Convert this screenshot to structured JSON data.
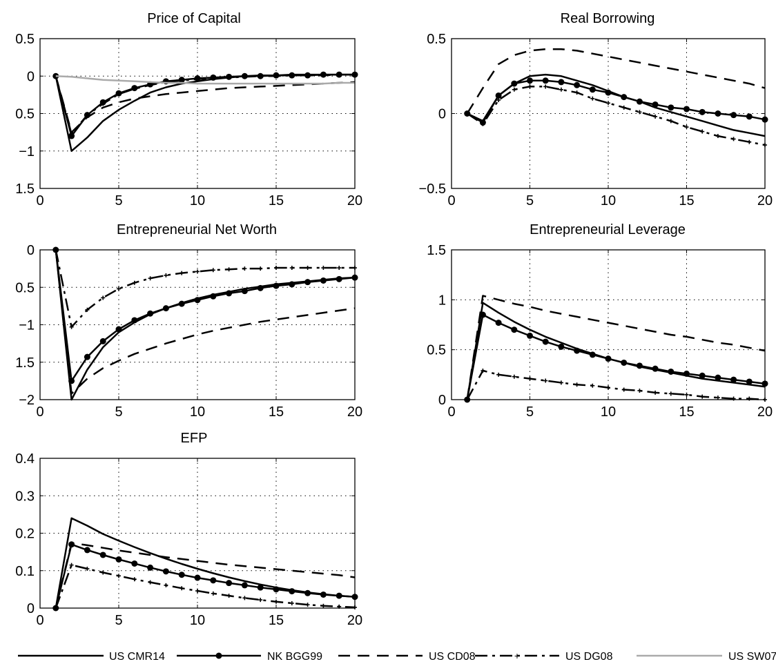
{
  "figure": {
    "panels": [
      {
        "title": "Price of Capital",
        "xlim": [
          0,
          20
        ],
        "ylim": [
          -1.5,
          0.5
        ],
        "xticks": [
          0,
          5,
          10,
          15,
          20
        ],
        "xtick_labels": [
          "0",
          "5",
          "10",
          "15",
          "20"
        ],
        "yticks": [
          0.5,
          0,
          -0.5,
          -1,
          -1.5
        ],
        "ytick_labels": [
          "0.5",
          "0",
          "0.5",
          "−1",
          "1.5"
        ]
      },
      {
        "title": "Real Borrowing",
        "xlim": [
          0,
          20
        ],
        "ylim": [
          -0.5,
          0.5
        ],
        "xticks": [
          0,
          5,
          10,
          15,
          20
        ],
        "xtick_labels": [
          "0",
          "5",
          "10",
          "15",
          "20"
        ],
        "yticks": [
          0.5,
          0,
          -0.5
        ],
        "ytick_labels": [
          "0.5",
          "0",
          "−0.5"
        ]
      },
      {
        "title": "Entrepreneurial Net Worth",
        "xlim": [
          0,
          20
        ],
        "ylim": [
          -2,
          0
        ],
        "xticks": [
          0,
          5,
          10,
          15,
          20
        ],
        "xtick_labels": [
          "0",
          "5",
          "10",
          "15",
          "20"
        ],
        "yticks": [
          0,
          -0.5,
          -1,
          -1.5,
          -2
        ],
        "ytick_labels": [
          "0",
          "0.5",
          "−1",
          "1.5",
          "−2"
        ]
      },
      {
        "title": "Entrepreneurial Leverage",
        "xlim": [
          0,
          20
        ],
        "ylim": [
          0,
          1.5
        ],
        "xticks": [
          0,
          5,
          10,
          15,
          20
        ],
        "xtick_labels": [
          "0",
          "5",
          "10",
          "15",
          "20"
        ],
        "yticks": [
          1.5,
          1,
          0.5,
          0
        ],
        "ytick_labels": [
          "1.5",
          "1",
          "0.5",
          "0"
        ]
      },
      {
        "title": "EFP",
        "xlim": [
          0,
          20
        ],
        "ylim": [
          0,
          0.4
        ],
        "xticks": [
          0,
          5,
          10,
          15,
          20
        ],
        "xtick_labels": [
          "0",
          "5",
          "10",
          "15",
          "20"
        ],
        "yticks": [
          0.4,
          0.3,
          0.2,
          0.1,
          0
        ],
        "ytick_labels": [
          "0.4",
          "0.3",
          "0.2",
          "0.1",
          "0"
        ]
      }
    ],
    "legend": [
      {
        "label": "US  CMR14",
        "style": "solid",
        "color": "#000000"
      },
      {
        "label": "NK  BGG99",
        "style": "solid-dots",
        "color": "#000000"
      },
      {
        "label": "US  CD08",
        "style": "dashed",
        "color": "#000000"
      },
      {
        "label": "US  DG08",
        "style": "dashdot-plus",
        "color": "#000000"
      },
      {
        "label": "US  SW07",
        "style": "solid",
        "color": "#aaaaaa"
      }
    ]
  },
  "chart_data": [
    {
      "type": "line",
      "title": "Price of Capital",
      "xlim": [
        0,
        20
      ],
      "ylim": [
        -1.5,
        0.5
      ],
      "grid": true,
      "x": [
        1,
        2,
        3,
        4,
        5,
        6,
        7,
        8,
        9,
        10,
        11,
        12,
        13,
        14,
        15,
        16,
        17,
        18,
        19,
        20
      ],
      "series": [
        {
          "name": "US  CMR14",
          "values": [
            0,
            -1.0,
            -0.82,
            -0.6,
            -0.45,
            -0.33,
            -0.22,
            -0.15,
            -0.1,
            -0.07,
            -0.04,
            -0.02,
            0,
            0.01,
            0.01,
            0.02,
            0.02,
            0.02,
            0.02,
            0.02
          ]
        },
        {
          "name": "NK  BGG99",
          "values": [
            0,
            -0.8,
            -0.52,
            -0.35,
            -0.23,
            -0.16,
            -0.11,
            -0.07,
            -0.05,
            -0.03,
            -0.02,
            -0.01,
            0,
            0,
            0.01,
            0.01,
            0.01,
            0.02,
            0.02,
            0.02
          ]
        },
        {
          "name": "US  CD08",
          "values": [
            0,
            -0.75,
            -0.55,
            -0.42,
            -0.35,
            -0.3,
            -0.27,
            -0.24,
            -0.22,
            -0.2,
            -0.18,
            -0.16,
            -0.15,
            -0.14,
            -0.13,
            -0.12,
            -0.11,
            -0.1,
            -0.09,
            -0.08
          ]
        },
        {
          "name": "US  DG08",
          "values": [
            0,
            -0.77,
            -0.52,
            -0.37,
            -0.24,
            -0.17,
            -0.12,
            -0.08,
            -0.06,
            -0.04,
            -0.03,
            -0.02,
            -0.01,
            0,
            0,
            0.01,
            0.01,
            0.01,
            0.02,
            0.02
          ]
        },
        {
          "name": "US  SW07",
          "values": [
            0,
            -0.01,
            -0.03,
            -0.05,
            -0.06,
            -0.07,
            -0.08,
            -0.09,
            -0.09,
            -0.1,
            -0.1,
            -0.1,
            -0.1,
            -0.1,
            -0.1,
            -0.1,
            -0.1,
            -0.1,
            -0.09,
            -0.09
          ]
        }
      ]
    },
    {
      "type": "line",
      "title": "Real Borrowing",
      "xlim": [
        0,
        20
      ],
      "ylim": [
        -0.5,
        0.5
      ],
      "grid": true,
      "x": [
        1,
        2,
        3,
        4,
        5,
        6,
        7,
        8,
        9,
        10,
        11,
        12,
        13,
        14,
        15,
        16,
        17,
        18,
        19,
        20
      ],
      "series": [
        {
          "name": "US  CMR14",
          "values": [
            0,
            -0.05,
            0.12,
            0.2,
            0.25,
            0.26,
            0.25,
            0.22,
            0.19,
            0.15,
            0.11,
            0.08,
            0.04,
            0.01,
            -0.02,
            -0.05,
            -0.08,
            -0.11,
            -0.13,
            -0.15
          ]
        },
        {
          "name": "NK  BGG99",
          "values": [
            0,
            -0.06,
            0.12,
            0.2,
            0.22,
            0.22,
            0.21,
            0.19,
            0.16,
            0.14,
            0.11,
            0.08,
            0.06,
            0.04,
            0.03,
            0.01,
            0,
            -0.01,
            -0.02,
            -0.04
          ]
        },
        {
          "name": "US  CD08",
          "values": [
            0,
            0.17,
            0.33,
            0.39,
            0.42,
            0.43,
            0.43,
            0.42,
            0.4,
            0.38,
            0.36,
            0.34,
            0.32,
            0.3,
            0.28,
            0.26,
            0.24,
            0.22,
            0.2,
            0.17
          ]
        },
        {
          "name": "US  DG08",
          "values": [
            0,
            -0.07,
            0.09,
            0.16,
            0.18,
            0.18,
            0.16,
            0.14,
            0.1,
            0.07,
            0.04,
            0.01,
            -0.02,
            -0.05,
            -0.09,
            -0.12,
            -0.15,
            -0.17,
            -0.19,
            -0.21
          ]
        }
      ]
    },
    {
      "type": "line",
      "title": "Entrepreneurial Net Worth",
      "xlim": [
        0,
        20
      ],
      "ylim": [
        -2,
        0
      ],
      "grid": true,
      "x": [
        1,
        2,
        3,
        4,
        5,
        6,
        7,
        8,
        9,
        10,
        11,
        12,
        13,
        14,
        15,
        16,
        17,
        18,
        19,
        20
      ],
      "series": [
        {
          "name": "US  CMR14",
          "values": [
            0,
            -2.0,
            -1.6,
            -1.3,
            -1.1,
            -0.97,
            -0.86,
            -0.78,
            -0.71,
            -0.65,
            -0.6,
            -0.56,
            -0.52,
            -0.49,
            -0.46,
            -0.44,
            -0.42,
            -0.4,
            -0.38,
            -0.37
          ]
        },
        {
          "name": "NK  BGG99",
          "values": [
            0,
            -1.75,
            -1.43,
            -1.22,
            -1.06,
            -0.94,
            -0.85,
            -0.78,
            -0.72,
            -0.67,
            -0.62,
            -0.58,
            -0.55,
            -0.51,
            -0.48,
            -0.46,
            -0.43,
            -0.41,
            -0.39,
            -0.37
          ]
        },
        {
          "name": "US  CD08",
          "values": [
            0,
            -1.92,
            -1.72,
            -1.58,
            -1.48,
            -1.39,
            -1.32,
            -1.25,
            -1.19,
            -1.13,
            -1.08,
            -1.04,
            -1.0,
            -0.96,
            -0.93,
            -0.9,
            -0.87,
            -0.84,
            -0.81,
            -0.78
          ]
        },
        {
          "name": "US  DG08",
          "values": [
            0,
            -1.03,
            -0.8,
            -0.64,
            -0.52,
            -0.44,
            -0.38,
            -0.34,
            -0.31,
            -0.29,
            -0.27,
            -0.26,
            -0.25,
            -0.25,
            -0.24,
            -0.24,
            -0.24,
            -0.24,
            -0.24,
            -0.24
          ]
        }
      ]
    },
    {
      "type": "line",
      "title": "Entrepreneurial Leverage",
      "xlim": [
        0,
        20
      ],
      "ylim": [
        0,
        1.5
      ],
      "grid": true,
      "x": [
        1,
        2,
        3,
        4,
        5,
        6,
        7,
        8,
        9,
        10,
        11,
        12,
        13,
        14,
        15,
        16,
        17,
        18,
        19,
        20
      ],
      "series": [
        {
          "name": "US  CMR14",
          "values": [
            0,
            0.97,
            0.87,
            0.78,
            0.7,
            0.63,
            0.57,
            0.51,
            0.46,
            0.41,
            0.37,
            0.33,
            0.3,
            0.27,
            0.24,
            0.21,
            0.19,
            0.17,
            0.15,
            0.13
          ]
        },
        {
          "name": "NK  BGG99",
          "values": [
            0,
            0.85,
            0.77,
            0.7,
            0.64,
            0.58,
            0.53,
            0.49,
            0.45,
            0.41,
            0.37,
            0.34,
            0.31,
            0.28,
            0.26,
            0.24,
            0.22,
            0.2,
            0.18,
            0.16
          ]
        },
        {
          "name": "US  CD08",
          "values": [
            0,
            1.04,
            1.0,
            0.96,
            0.93,
            0.89,
            0.86,
            0.83,
            0.8,
            0.77,
            0.74,
            0.71,
            0.68,
            0.65,
            0.63,
            0.6,
            0.57,
            0.55,
            0.52,
            0.49
          ]
        },
        {
          "name": "US  DG08",
          "values": [
            0,
            0.29,
            0.25,
            0.23,
            0.21,
            0.19,
            0.17,
            0.15,
            0.14,
            0.12,
            0.1,
            0.09,
            0.07,
            0.06,
            0.05,
            0.03,
            0.02,
            0.01,
            0.01,
            0
          ]
        }
      ]
    },
    {
      "type": "line",
      "title": "EFP",
      "xlim": [
        0,
        20
      ],
      "ylim": [
        0,
        0.4
      ],
      "grid": true,
      "x": [
        1,
        2,
        3,
        4,
        5,
        6,
        7,
        8,
        9,
        10,
        11,
        12,
        13,
        14,
        15,
        16,
        17,
        18,
        19,
        20
      ],
      "series": [
        {
          "name": "US  CMR14",
          "values": [
            0,
            0.24,
            0.22,
            0.198,
            0.18,
            0.163,
            0.147,
            0.132,
            0.118,
            0.105,
            0.093,
            0.082,
            0.072,
            0.063,
            0.055,
            0.048,
            0.042,
            0.037,
            0.033,
            0.03
          ]
        },
        {
          "name": "NK  BGG99",
          "values": [
            0,
            0.17,
            0.155,
            0.142,
            0.13,
            0.119,
            0.108,
            0.098,
            0.089,
            0.081,
            0.074,
            0.067,
            0.061,
            0.055,
            0.05,
            0.045,
            0.04,
            0.036,
            0.033,
            0.03
          ]
        },
        {
          "name": "US  CD08",
          "values": [
            0,
            0.174,
            0.168,
            0.161,
            0.154,
            0.148,
            0.142,
            0.136,
            0.131,
            0.126,
            0.121,
            0.116,
            0.112,
            0.108,
            0.104,
            0.1,
            0.096,
            0.092,
            0.088,
            0.082
          ]
        },
        {
          "name": "US  DG08",
          "values": [
            0,
            0.115,
            0.105,
            0.095,
            0.086,
            0.077,
            0.069,
            0.061,
            0.053,
            0.046,
            0.039,
            0.033,
            0.027,
            0.022,
            0.017,
            0.013,
            0.009,
            0.006,
            0.004,
            0.002
          ]
        }
      ]
    }
  ]
}
